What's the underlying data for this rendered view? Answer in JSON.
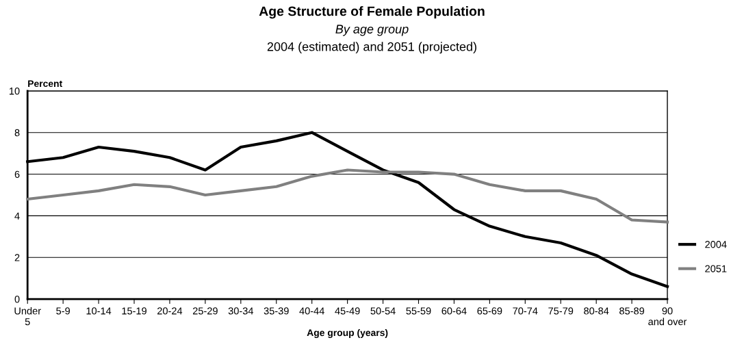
{
  "chart_data": {
    "type": "line",
    "title": "Age Structure of Female Population",
    "subtitle": "By age group",
    "annotations": [
      "2004 (estimated) and 2051 (projected)"
    ],
    "xlabel": "Age group (years)",
    "ylabel": "Percent",
    "categories": [
      "Under\n5",
      "5-9",
      "10-14",
      "15-19",
      "20-24",
      "25-29",
      "30-34",
      "35-39",
      "40-44",
      "45-49",
      "50-54",
      "55-59",
      "60-64",
      "65-69",
      "70-74",
      "75-79",
      "80-84",
      "85-89",
      "90\nand over"
    ],
    "series": [
      {
        "name": "2004",
        "color": "#000000",
        "values": [
          6.6,
          6.8,
          7.3,
          7.1,
          6.8,
          6.2,
          7.3,
          7.6,
          8.0,
          7.1,
          6.2,
          5.6,
          4.3,
          3.5,
          3.0,
          2.7,
          2.1,
          1.2,
          0.6
        ]
      },
      {
        "name": "2051",
        "color": "#808080",
        "values": [
          4.8,
          5.0,
          5.2,
          5.5,
          5.4,
          5.0,
          5.2,
          5.4,
          5.9,
          6.2,
          6.1,
          6.1,
          6.0,
          5.5,
          5.2,
          5.2,
          4.8,
          3.8,
          3.7
        ]
      }
    ],
    "ylim": [
      0,
      10
    ],
    "yticks": [
      0,
      2,
      4,
      6,
      8,
      10
    ],
    "grid": "y",
    "legend": "right",
    "marker": "none",
    "line_style": "solid"
  }
}
